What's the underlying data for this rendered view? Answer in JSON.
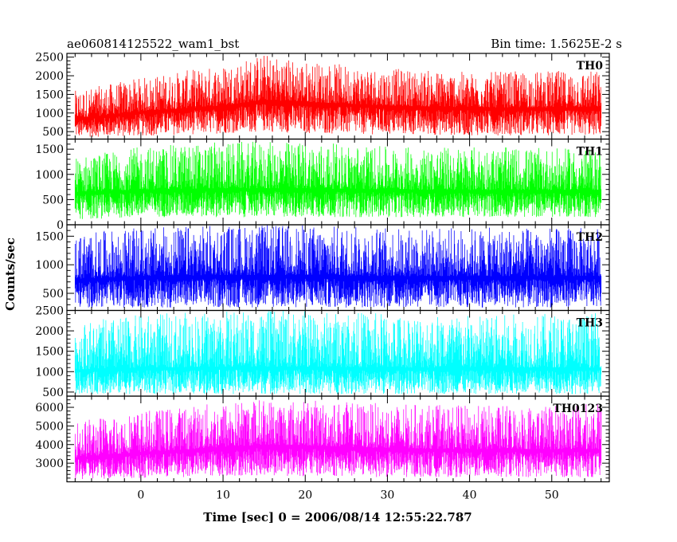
{
  "chart_data": {
    "type": "line",
    "title_left": "ae060814125522_wam1_bst",
    "title_right": "Bin time: 1.5625E-2 s",
    "xlabel": "Time [sec] 0 = 2006/08/14 12:55:22.787",
    "ylabel": "Counts/sec",
    "xlim": [
      -9,
      57
    ],
    "x_data_range": [
      -8,
      56
    ],
    "xticks": [
      0,
      10,
      20,
      30,
      40,
      50
    ],
    "grid": false,
    "panels": [
      {
        "name": "TH0",
        "color": "#ff0000",
        "ylim": [
          300,
          2600
        ],
        "yticks": [
          500,
          1000,
          1500,
          2000,
          2500
        ],
        "mean_profile": {
          "x": [
            -8,
            0,
            10,
            15,
            20,
            30,
            40,
            56
          ],
          "y": [
            850,
            1050,
            1200,
            1350,
            1300,
            1200,
            1150,
            1150
          ]
        },
        "low_envelope": {
          "x": [
            -8,
            0,
            10,
            15,
            20,
            30,
            40,
            56
          ],
          "y": [
            350,
            380,
            450,
            500,
            450,
            420,
            400,
            400
          ]
        },
        "high_envelope": {
          "x": [
            -8,
            0,
            10,
            15,
            20,
            30,
            40,
            56
          ],
          "y": [
            1600,
            1950,
            2300,
            2600,
            2400,
            2200,
            2100,
            2150
          ]
        }
      },
      {
        "name": "TH1",
        "color": "#00ff00",
        "ylim": [
          0,
          1700
        ],
        "yticks": [
          0,
          500,
          1000,
          1500
        ],
        "mean_profile": {
          "x": [
            -8,
            0,
            10,
            20,
            30,
            40,
            56
          ],
          "y": [
            650,
            700,
            720,
            720,
            700,
            690,
            690
          ]
        },
        "low_envelope": {
          "x": [
            -8,
            0,
            10,
            20,
            30,
            40,
            56
          ],
          "y": [
            100,
            150,
            150,
            150,
            150,
            150,
            150
          ]
        },
        "high_envelope": {
          "x": [
            -8,
            0,
            10,
            20,
            30,
            40,
            56
          ],
          "y": [
            1350,
            1550,
            1650,
            1650,
            1550,
            1550,
            1500
          ]
        }
      },
      {
        "name": "TH2",
        "color": "#0000ff",
        "ylim": [
          200,
          1700
        ],
        "yticks": [
          500,
          1000,
          1500
        ],
        "mean_profile": {
          "x": [
            -8,
            0,
            10,
            20,
            30,
            40,
            56
          ],
          "y": [
            750,
            800,
            820,
            820,
            800,
            800,
            800
          ]
        },
        "low_envelope": {
          "x": [
            -8,
            0,
            10,
            20,
            30,
            40,
            56
          ],
          "y": [
            250,
            250,
            250,
            250,
            250,
            250,
            250
          ]
        },
        "high_envelope": {
          "x": [
            -8,
            0,
            10,
            20,
            30,
            40,
            56
          ],
          "y": [
            1550,
            1650,
            1700,
            1700,
            1650,
            1650,
            1650
          ]
        }
      },
      {
        "name": "TH3",
        "color": "#00ffff",
        "ylim": [
          400,
          2500
        ],
        "yticks": [
          500,
          1000,
          1500,
          2000,
          2500
        ],
        "mean_profile": {
          "x": [
            -8,
            0,
            10,
            20,
            30,
            40,
            56
          ],
          "y": [
            1050,
            1100,
            1120,
            1120,
            1100,
            1100,
            1100
          ]
        },
        "low_envelope": {
          "x": [
            -8,
            0,
            10,
            20,
            30,
            40,
            56
          ],
          "y": [
            450,
            450,
            450,
            450,
            450,
            450,
            450
          ]
        },
        "high_envelope": {
          "x": [
            -8,
            0,
            10,
            20,
            30,
            40,
            56
          ],
          "y": [
            2200,
            2400,
            2500,
            2500,
            2450,
            2400,
            2450
          ]
        }
      },
      {
        "name": "TH0123",
        "color": "#ff00ff",
        "ylim": [
          2000,
          6600
        ],
        "yticks": [
          3000,
          4000,
          5000,
          6000
        ],
        "mean_profile": {
          "x": [
            -8,
            0,
            10,
            15,
            20,
            30,
            40,
            56
          ],
          "y": [
            3300,
            3600,
            3850,
            4000,
            3950,
            3800,
            3750,
            3750
          ]
        },
        "low_envelope": {
          "x": [
            -8,
            0,
            10,
            15,
            20,
            30,
            40,
            56
          ],
          "y": [
            2100,
            2200,
            2300,
            2350,
            2300,
            2250,
            2250,
            2250
          ]
        },
        "high_envelope": {
          "x": [
            -8,
            0,
            10,
            15,
            20,
            30,
            40,
            56
          ],
          "y": [
            5300,
            5800,
            6300,
            6500,
            6400,
            6200,
            6100,
            6200
          ]
        }
      }
    ]
  }
}
